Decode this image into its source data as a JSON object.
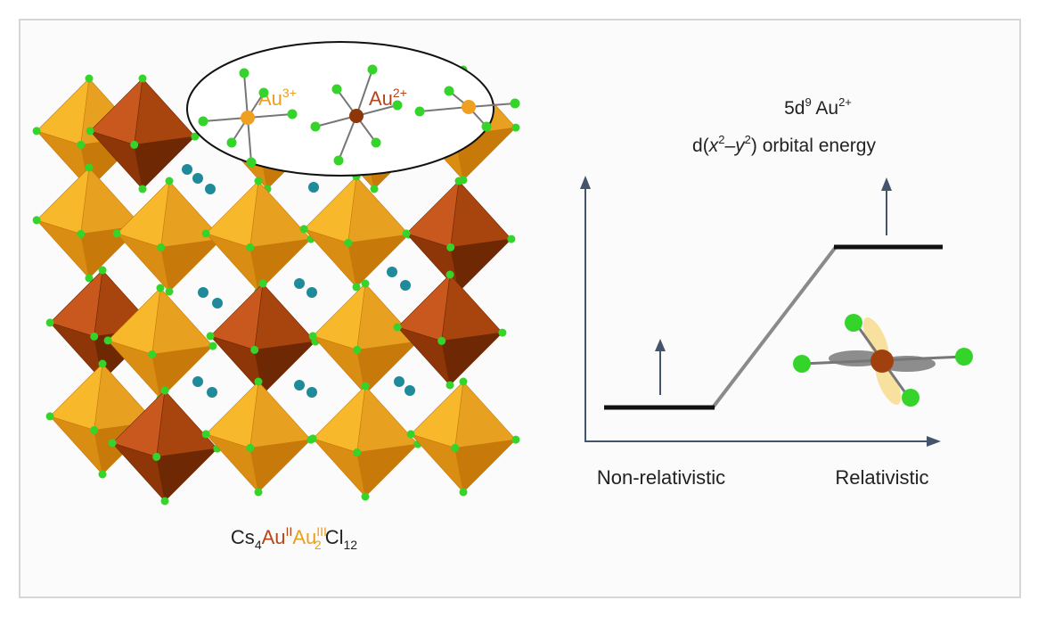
{
  "crystal": {
    "inset_labels": [
      {
        "element": "Au",
        "charge": "3+"
      },
      {
        "element": "Au",
        "charge": "2+"
      }
    ],
    "formula": [
      "Cs",
      "4",
      "Au",
      "II",
      "Au",
      "III",
      "2",
      "Cl",
      "12"
    ]
  },
  "energy_diagram": {
    "title": [
      "5d",
      "9",
      " Au",
      "2+"
    ],
    "subtitle": [
      "d(",
      "x",
      "2",
      "–",
      "y",
      "2",
      ") orbital energy"
    ],
    "left_label": "Non-relativistic",
    "right_label": "Relativistic"
  }
}
